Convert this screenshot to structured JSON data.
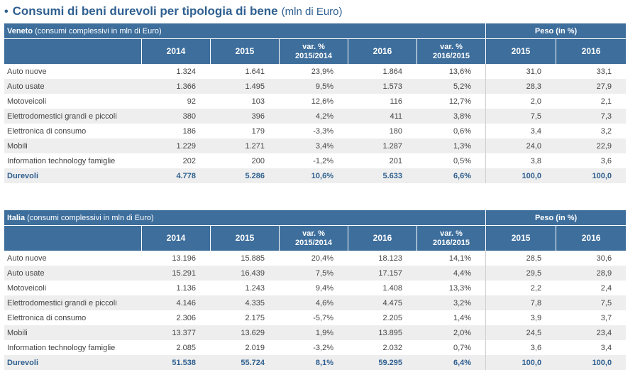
{
  "title": {
    "bullet": "•",
    "main": "Consumi di beni durevoli per tipologia di bene",
    "sub": "(mln di Euro)"
  },
  "columns": {
    "y2014": "2014",
    "y2015": "2015",
    "var1": [
      "var. %",
      "2015/2014"
    ],
    "y2016": "2016",
    "var2": [
      "var. %",
      "2016/2015"
    ],
    "peso2015": "2015",
    "peso2016": "2016",
    "peso_header": "Peso (in %)"
  },
  "tables": [
    {
      "region": "Veneto",
      "region_note": "(consumi complessivi in mln di Euro)",
      "rows": [
        [
          "Auto nuove",
          "1.324",
          "1.641",
          "23,9%",
          "1.864",
          "13,6%",
          "31,0",
          "33,1"
        ],
        [
          "Auto usate",
          "1.366",
          "1.495",
          "9,5%",
          "1.573",
          "5,2%",
          "28,3",
          "27,9"
        ],
        [
          "Motoveicoli",
          "92",
          "103",
          "12,6%",
          "116",
          "12,7%",
          "2,0",
          "2,1"
        ],
        [
          "Elettrodomestici grandi e piccoli",
          "380",
          "396",
          "4,2%",
          "411",
          "3,8%",
          "7,5",
          "7,3"
        ],
        [
          "Elettronica di consumo",
          "186",
          "179",
          "-3,3%",
          "180",
          "0,6%",
          "3,4",
          "3,2"
        ],
        [
          "Mobili",
          "1.229",
          "1.271",
          "3,4%",
          "1.287",
          "1,3%",
          "24,0",
          "22,9"
        ],
        [
          "Information technology famiglie",
          "202",
          "200",
          "-1,2%",
          "201",
          "0,5%",
          "3,8",
          "3,6"
        ]
      ],
      "total": [
        "Durevoli",
        "4.778",
        "5.286",
        "10,6%",
        "5.633",
        "6,6%",
        "100,0",
        "100,0"
      ]
    },
    {
      "region": "Italia",
      "region_note": "(consumi complessivi in mln di Euro)",
      "rows": [
        [
          "Auto nuove",
          "13.196",
          "15.885",
          "20,4%",
          "18.123",
          "14,1%",
          "28,5",
          "30,6"
        ],
        [
          "Auto usate",
          "15.291",
          "16.439",
          "7,5%",
          "17.157",
          "4,4%",
          "29,5",
          "28,9"
        ],
        [
          "Motoveicoli",
          "1.136",
          "1.243",
          "9,4%",
          "1.408",
          "13,3%",
          "2,2",
          "2,4"
        ],
        [
          "Elettrodomestici grandi e piccoli",
          "4.146",
          "4.335",
          "4,6%",
          "4.475",
          "3,2%",
          "7,8",
          "7,5"
        ],
        [
          "Elettronica di consumo",
          "2.306",
          "2.175",
          "-5,7%",
          "2.205",
          "1,4%",
          "3,9",
          "3,7"
        ],
        [
          "Mobili",
          "13.377",
          "13.629",
          "1,9%",
          "13.895",
          "2,0%",
          "24,5",
          "23,4"
        ],
        [
          "Information technology famiglie",
          "2.085",
          "2.019",
          "-3,2%",
          "2.032",
          "0,7%",
          "3,6",
          "3,4"
        ]
      ],
      "total": [
        "Durevoli",
        "51.538",
        "55.724",
        "8,1%",
        "59.295",
        "6,4%",
        "100,0",
        "100,0"
      ]
    }
  ]
}
